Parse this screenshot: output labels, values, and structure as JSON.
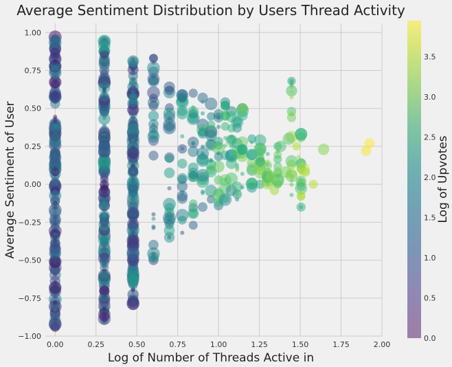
{
  "chart_data": {
    "type": "scatter",
    "title": "Average Sentiment Distribution by Users Thread Activity",
    "xlabel": "Log of Number of Threads Active in",
    "ylabel": "Average Sentiment of User",
    "xlim": [
      -0.06,
      2.0
    ],
    "ylim": [
      -1.0,
      1.06
    ],
    "xticks": [
      "0.00",
      "0.25",
      "0.50",
      "0.75",
      "1.00",
      "1.25",
      "1.50",
      "1.75",
      "2.00"
    ],
    "yticks": [
      "1.00",
      "0.75",
      "0.50",
      "0.25",
      "0.00",
      "−0.25",
      "−0.50",
      "−0.75",
      "−1.00"
    ],
    "grid": true,
    "colormap": "viridis",
    "alpha": 0.5,
    "color_encoding": "Log of Upvotes",
    "size_encoding": "Log of Number of Threads Active in",
    "colorbar": {
      "label": "Log of Upvotes",
      "range": [
        0.0,
        3.95
      ],
      "ticks": [
        "0.0",
        "0.5",
        "1.0",
        "1.5",
        "2.0",
        "2.5",
        "3.0",
        "3.5"
      ]
    },
    "columns": [
      {
        "x": 0.0,
        "ymin": -0.94,
        "ymax": 0.97,
        "cmin": 0.1,
        "cmax": 2.0
      },
      {
        "x": 0.301,
        "ymin": -0.9,
        "ymax": 0.95,
        "cmin": 0.2,
        "cmax": 2.3
      },
      {
        "x": 0.477,
        "ymin": -0.79,
        "ymax": 0.82,
        "cmin": 0.5,
        "cmax": 2.2
      },
      {
        "x": 0.602,
        "ymin": -0.5,
        "ymax": 0.83,
        "cmin": 0.8,
        "cmax": 2.2
      },
      {
        "x": 0.699,
        "ymin": -0.35,
        "ymax": 0.64,
        "cmin": 1.0,
        "cmax": 2.4
      },
      {
        "x": 0.778,
        "ymin": -0.32,
        "ymax": 0.59,
        "cmin": 1.0,
        "cmax": 2.4
      },
      {
        "x": 0.845,
        "ymin": -0.27,
        "ymax": 0.6,
        "cmin": 1.2,
        "cmax": 2.8
      },
      {
        "x": 0.903,
        "ymin": -0.15,
        "ymax": 0.57,
        "cmin": 1.3,
        "cmax": 2.8
      },
      {
        "x": 0.954,
        "ymin": -0.1,
        "ymax": 0.53,
        "cmin": 1.4,
        "cmax": 2.9
      },
      {
        "x": 1.0,
        "ymin": -0.14,
        "ymax": 0.46,
        "cmin": 1.6,
        "cmax": 3.0
      },
      {
        "x": 1.041,
        "ymin": -0.1,
        "ymax": 0.54,
        "cmin": 1.8,
        "cmax": 3.0
      },
      {
        "x": 1.079,
        "ymin": -0.04,
        "ymax": 0.48,
        "cmin": 1.9,
        "cmax": 3.1
      },
      {
        "x": 1.114,
        "ymin": -0.1,
        "ymax": 0.41,
        "cmin": 2.0,
        "cmax": 3.2
      },
      {
        "x": 1.146,
        "ymin": -0.02,
        "ymax": 0.5,
        "cmin": 2.1,
        "cmax": 3.2
      },
      {
        "x": 1.204,
        "ymin": -0.02,
        "ymax": 0.3,
        "cmin": 2.2,
        "cmax": 3.3
      },
      {
        "x": 1.255,
        "ymin": 0.0,
        "ymax": 0.29,
        "cmin": 2.4,
        "cmax": 3.4
      },
      {
        "x": 1.301,
        "ymin": 0.0,
        "ymax": 0.2,
        "cmin": 2.5,
        "cmax": 3.4
      },
      {
        "x": 1.362,
        "ymin": 0.0,
        "ymax": 0.25,
        "cmin": 2.7,
        "cmax": 3.5
      },
      {
        "x": 1.447,
        "ymin": -0.07,
        "ymax": 0.68,
        "cmin": 2.6,
        "cmax": 3.5
      },
      {
        "x": 1.505,
        "ymin": -0.15,
        "ymax": 0.33,
        "cmin": 2.5,
        "cmax": 3.6
      }
    ],
    "points": [
      {
        "x": 0.602,
        "y": 0.83,
        "c": 1.0
      },
      {
        "x": 0.477,
        "y": -0.63,
        "c": 2.2
      },
      {
        "x": 0.477,
        "y": -0.79,
        "c": 1.1
      },
      {
        "x": 0.301,
        "y": -0.87,
        "c": 0.6
      },
      {
        "x": 0.602,
        "y": -0.5,
        "c": 2.0
      },
      {
        "x": 0.699,
        "y": -0.35,
        "c": 2.0
      },
      {
        "x": 1.114,
        "y": 0.41,
        "c": 2.4
      },
      {
        "x": 1.146,
        "y": 0.5,
        "c": 3.2
      },
      {
        "x": 1.447,
        "y": 0.68,
        "c": 2.3
      },
      {
        "x": 1.505,
        "y": 0.33,
        "c": 2.6
      },
      {
        "x": 1.477,
        "y": 0.25,
        "c": 3.5
      },
      {
        "x": 1.519,
        "y": 0.1,
        "c": 3.6
      },
      {
        "x": 1.531,
        "y": 0.08,
        "c": 3.4
      },
      {
        "x": 1.49,
        "y": 0.18,
        "c": 3.3
      },
      {
        "x": 1.505,
        "y": 0.02,
        "c": 2.9
      },
      {
        "x": 1.58,
        "y": 0.0,
        "c": 3.5
      },
      {
        "x": 1.643,
        "y": 0.23,
        "c": 3.2
      },
      {
        "x": 1.903,
        "y": 0.22,
        "c": 3.9
      },
      {
        "x": 1.924,
        "y": 0.27,
        "c": 3.95
      },
      {
        "x": 1.41,
        "y": 0.08,
        "c": 3.1
      },
      {
        "x": 1.43,
        "y": 0.3,
        "c": 2.9
      },
      {
        "x": 1.38,
        "y": 0.25,
        "c": 2.8
      },
      {
        "x": 1.505,
        "y": -0.15,
        "c": 2.5
      },
      {
        "x": 1.32,
        "y": 0.05,
        "c": 3.2
      },
      {
        "x": 1.342,
        "y": -0.04,
        "c": 3.4
      }
    ]
  }
}
